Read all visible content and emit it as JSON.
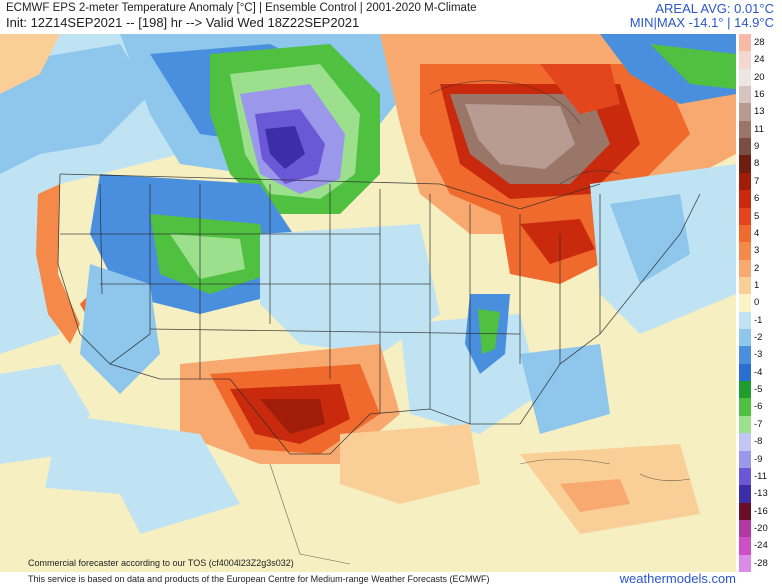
{
  "header": {
    "title": "ECMWF EPS 2-meter Temperature Anomaly [°C] | Ensemble Control | 2001-2020 M-Climate",
    "init": "Init: 12Z14SEP2021 -- [198] hr --> Valid Wed 18Z22SEP2021",
    "areal_avg": "AREAL AVG: 0.01°C",
    "minmax": "MIN|MAX -14.1° | 14.9°C"
  },
  "legend": {
    "items": [
      {
        "label": "28",
        "color": "#f9b9a6"
      },
      {
        "label": "24",
        "color": "#f4d8d0"
      },
      {
        "label": "20",
        "color": "#ece6e4"
      },
      {
        "label": "16",
        "color": "#d6c4be"
      },
      {
        "label": "13",
        "color": "#b89c92"
      },
      {
        "label": "11",
        "color": "#9a7668"
      },
      {
        "label": "9",
        "color": "#7a4e40"
      },
      {
        "label": "8",
        "color": "#6e1f10"
      },
      {
        "label": "7",
        "color": "#a01d0a"
      },
      {
        "label": "6",
        "color": "#c92a0e"
      },
      {
        "label": "5",
        "color": "#e3461c"
      },
      {
        "label": "4",
        "color": "#ef6a2c"
      },
      {
        "label": "3",
        "color": "#f4894a"
      },
      {
        "label": "2",
        "color": "#f7a96f"
      },
      {
        "label": "1",
        "color": "#f9cf97"
      },
      {
        "label": "0",
        "color": "#fbf3c8"
      },
      {
        "label": "-1",
        "color": "#bfe3f3"
      },
      {
        "label": "-2",
        "color": "#8ec6ec"
      },
      {
        "label": "-3",
        "color": "#4a8fde"
      },
      {
        "label": "-4",
        "color": "#2a6fd0"
      },
      {
        "label": "-5",
        "color": "#1f9e2e"
      },
      {
        "label": "-6",
        "color": "#4fc040"
      },
      {
        "label": "-7",
        "color": "#9ce08e"
      },
      {
        "label": "-8",
        "color": "#c2c6f4"
      },
      {
        "label": "-9",
        "color": "#9b97ea"
      },
      {
        "label": "-11",
        "color": "#6a58d6"
      },
      {
        "label": "-13",
        "color": "#3d2ea8"
      },
      {
        "label": "-16",
        "color": "#6a0f2a"
      },
      {
        "label": "-20",
        "color": "#b03aa0"
      },
      {
        "label": "-24",
        "color": "#cc4fc8"
      },
      {
        "label": "-28",
        "color": "#d98be6"
      }
    ]
  },
  "map": {
    "tos_text": "Commercial forecaster according to our TOS (cf4004l23Z2g3s032)"
  },
  "footer": {
    "text": "This service is based on data and products of the European Centre for Medium-range Weather Forecasts (ECMWF)",
    "brand": "weathermodels.com"
  }
}
